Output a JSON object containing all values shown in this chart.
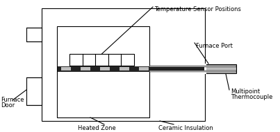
{
  "background": "#ffffff",
  "line_color": "#000000",
  "gray_color": "#bebebe",
  "dark_color": "#222222",
  "fig_width": 4.03,
  "fig_height": 1.91,
  "dpi": 100,
  "labels": {
    "temp_sensor": "Temperature Sensor Positions",
    "furnace_port": "Furnace Port",
    "multipoint1": "Multipoint",
    "multipoint2": "Thermocouple",
    "furnace_door1": "Furnace",
    "furnace_door2": "Door",
    "heated_zone": "Heated Zone",
    "ceramic_insulation": "Ceramic Insulation"
  },
  "font_size": 6.0
}
